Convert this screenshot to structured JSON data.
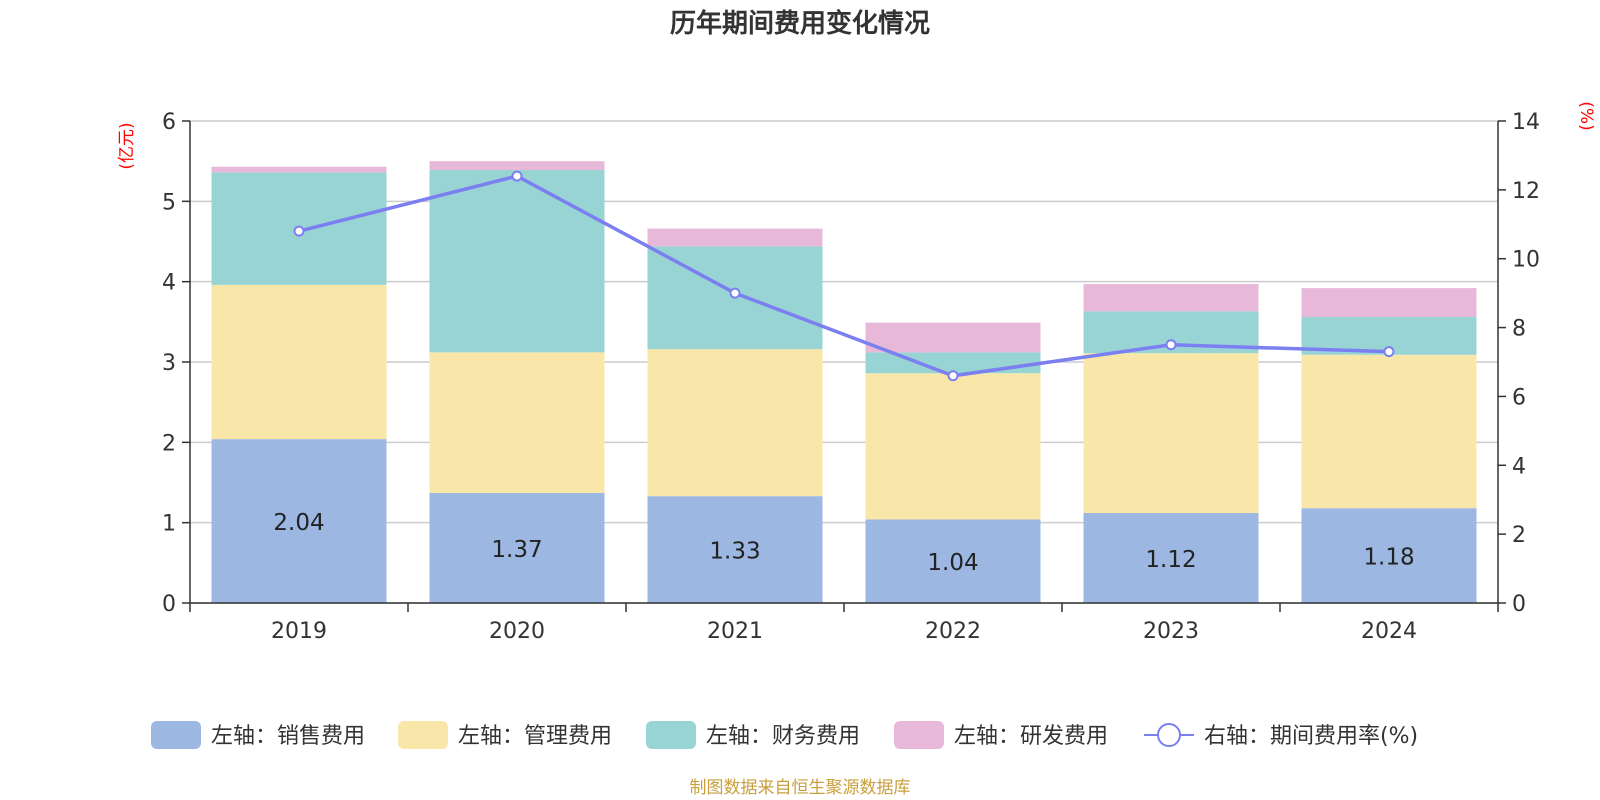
{
  "chart_data": {
    "type": "bar",
    "stacked": true,
    "title": "历年期间费用变化情况",
    "categories": [
      "2019",
      "2020",
      "2021",
      "2022",
      "2023",
      "2024"
    ],
    "y_left": {
      "unit": "(亿元)",
      "range": [
        0,
        6
      ],
      "ticks": [
        "0",
        "1",
        "2",
        "3",
        "4",
        "5",
        "6"
      ]
    },
    "y_right": {
      "unit": "(%)",
      "range": [
        0,
        14
      ],
      "ticks": [
        "0",
        "2",
        "4",
        "6",
        "8",
        "10",
        "12",
        "14"
      ]
    },
    "grid": true,
    "legend_position": "bottom",
    "series": [
      {
        "name": "左轴：销售费用",
        "axis": "left",
        "type": "bar",
        "color": "#9bb7e2",
        "values": [
          2.04,
          1.37,
          1.33,
          1.04,
          1.12,
          1.18
        ],
        "labels": [
          "2.04",
          "1.37",
          "1.33",
          "1.04",
          "1.12",
          "1.18"
        ]
      },
      {
        "name": "左轴：管理费用",
        "axis": "left",
        "type": "bar",
        "color": "#f8e7a8",
        "values": [
          1.92,
          1.75,
          1.83,
          1.82,
          1.99,
          1.91
        ]
      },
      {
        "name": "左轴：财务费用",
        "axis": "left",
        "type": "bar",
        "color": "#98d4d4",
        "values": [
          1.4,
          2.27,
          1.28,
          0.26,
          0.52,
          0.47
        ]
      },
      {
        "name": "左轴：研发费用",
        "axis": "left",
        "type": "bar",
        "color": "#e8b8d8",
        "values": [
          0.07,
          0.11,
          0.22,
          0.37,
          0.34,
          0.36
        ]
      },
      {
        "name": "右轴：期间费用率(%)",
        "axis": "right",
        "type": "line",
        "color": "#7b7ff0",
        "values": [
          10.8,
          12.4,
          9.0,
          6.6,
          7.5,
          7.3
        ]
      }
    ]
  },
  "source": "制图数据来自恒生聚源数据库"
}
